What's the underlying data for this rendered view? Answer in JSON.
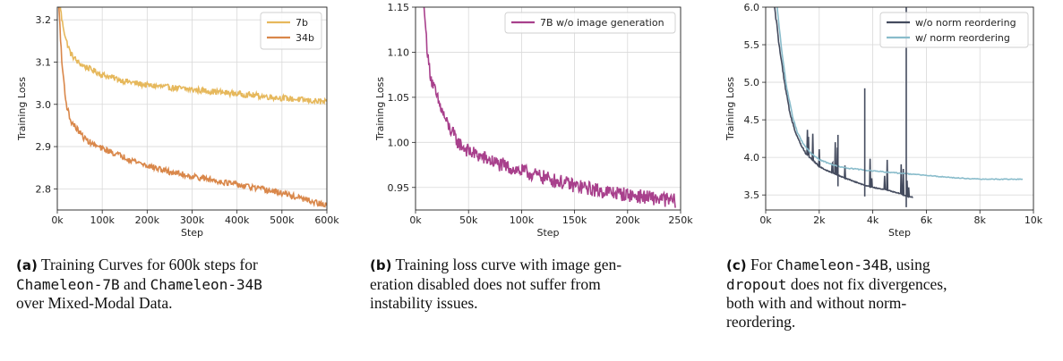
{
  "chart_data": [
    {
      "type": "line",
      "xlabel": "Step",
      "ylabel": "Training Loss",
      "xlim": [
        0,
        600000
      ],
      "ylim": [
        2.75,
        3.23
      ],
      "xticks": [
        0,
        100000,
        200000,
        300000,
        400000,
        500000,
        600000
      ],
      "xtick_labels": [
        "0k",
        "100k",
        "200k",
        "300k",
        "400k",
        "500k",
        "600k"
      ],
      "yticks": [
        2.8,
        2.9,
        3.0,
        3.1,
        3.2
      ],
      "ytick_labels": [
        "2.8",
        "2.9",
        "3.0",
        "3.1",
        "3.2"
      ],
      "grid": true,
      "legend": "top-right",
      "series": [
        {
          "name": "7b",
          "color": "#E6B85C",
          "x": [
            0,
            10000,
            20000,
            30000,
            45000,
            60000,
            80000,
            100000,
            150000,
            200000,
            250000,
            300000,
            350000,
            400000,
            450000,
            500000,
            550000,
            600000
          ],
          "y": [
            3.3,
            3.2,
            3.15,
            3.12,
            3.1,
            3.09,
            3.08,
            3.07,
            3.055,
            3.045,
            3.04,
            3.035,
            3.03,
            3.025,
            3.02,
            3.015,
            3.01,
            3.005
          ]
        },
        {
          "name": "34b",
          "color": "#D9874A",
          "x": [
            0,
            10000,
            20000,
            30000,
            45000,
            60000,
            80000,
            100000,
            150000,
            200000,
            250000,
            300000,
            350000,
            400000,
            450000,
            500000,
            550000,
            600000
          ],
          "y": [
            3.3,
            3.1,
            3.0,
            2.96,
            2.94,
            2.92,
            2.905,
            2.895,
            2.875,
            2.855,
            2.84,
            2.83,
            2.82,
            2.81,
            2.8,
            2.79,
            2.775,
            2.76
          ]
        }
      ]
    },
    {
      "type": "line",
      "xlabel": "Step",
      "ylabel": "Training Loss",
      "xlim": [
        0,
        250000
      ],
      "ylim": [
        0.925,
        1.15
      ],
      "xticks": [
        0,
        50000,
        100000,
        150000,
        200000,
        250000
      ],
      "xtick_labels": [
        "0k",
        "50k",
        "100k",
        "150k",
        "200k",
        "250k"
      ],
      "yticks": [
        0.95,
        1.0,
        1.05,
        1.1,
        1.15
      ],
      "ytick_labels": [
        "0.95",
        "1.00",
        "1.05",
        "1.10",
        "1.15"
      ],
      "grid": true,
      "legend": "top-right",
      "series": [
        {
          "name": "7B w/o image generation",
          "color": "#A8408C",
          "x": [
            8000,
            10000,
            12000,
            15000,
            20000,
            25000,
            30000,
            40000,
            50000,
            60000,
            80000,
            100000,
            125000,
            150000,
            175000,
            200000,
            225000,
            245000
          ],
          "y": [
            1.15,
            1.12,
            1.09,
            1.07,
            1.05,
            1.035,
            1.02,
            1.0,
            0.99,
            0.985,
            0.975,
            0.968,
            0.96,
            0.952,
            0.946,
            0.942,
            0.938,
            0.935
          ]
        }
      ]
    },
    {
      "type": "line",
      "xlabel": "Step",
      "ylabel": "Training Loss",
      "xlim": [
        0,
        10000
      ],
      "ylim": [
        3.3,
        6.0
      ],
      "xticks": [
        0,
        2000,
        4000,
        6000,
        8000,
        10000
      ],
      "xtick_labels": [
        "0k",
        "2k",
        "4k",
        "6k",
        "8k",
        "10k"
      ],
      "yticks": [
        3.5,
        4.0,
        4.5,
        5.0,
        5.5,
        6.0
      ],
      "ytick_labels": [
        "3.5",
        "4.0",
        "4.5",
        "5.0",
        "5.5",
        "6.0"
      ],
      "grid": true,
      "legend": "top-right",
      "series": [
        {
          "name": "w/o norm reordering",
          "color": "#444B5E",
          "x": [
            300,
            500,
            700,
            900,
            1100,
            1300,
            1500,
            1800,
            2000,
            2300,
            2600,
            3000,
            3300,
            3600,
            4000,
            4500,
            5000,
            5300,
            5500
          ],
          "y": [
            6.1,
            5.5,
            5.0,
            4.6,
            4.35,
            4.18,
            4.05,
            3.95,
            3.88,
            3.82,
            3.78,
            3.72,
            3.68,
            3.64,
            3.6,
            3.57,
            3.52,
            3.48,
            3.47
          ]
        },
        {
          "name": "w/ norm reordering",
          "color": "#89BCCB",
          "x": [
            400,
            600,
            800,
            1000,
            1200,
            1400,
            1700,
            2000,
            2500,
            3000,
            3500,
            4000,
            5000,
            6000,
            7000,
            8000,
            8500,
            9000,
            9600
          ],
          "y": [
            6.1,
            5.4,
            4.9,
            4.55,
            4.32,
            4.18,
            4.05,
            3.97,
            3.9,
            3.86,
            3.84,
            3.82,
            3.79,
            3.76,
            3.73,
            3.71,
            3.71,
            3.71,
            3.71
          ]
        }
      ]
    }
  ],
  "captions": [
    {
      "tag": "(a)",
      "lines": [
        [
          {
            "t": "Training Curves for 600k steps for"
          }
        ],
        [
          {
            "t": "Chameleon-7B",
            "mono": true
          },
          {
            "t": " and "
          },
          {
            "t": "Chameleon-34B",
            "mono": true
          }
        ],
        [
          {
            "t": "over Mixed-Modal Data."
          }
        ]
      ]
    },
    {
      "tag": "(b)",
      "lines": [
        [
          {
            "t": "Training loss curve with image gen-"
          }
        ],
        [
          {
            "t": "eration disabled does not suffer from"
          }
        ],
        [
          {
            "t": "instability issues."
          }
        ]
      ]
    },
    {
      "tag": "(c)",
      "lines": [
        [
          {
            "t": "For "
          },
          {
            "t": "Chameleon-34B",
            "mono": true
          },
          {
            "t": ", using"
          }
        ],
        [
          {
            "t": "dropout",
            "mono": true
          },
          {
            "t": " does not fix divergences,"
          }
        ],
        [
          {
            "t": "both with and without norm-"
          }
        ],
        [
          {
            "t": "reordering."
          }
        ]
      ]
    }
  ]
}
